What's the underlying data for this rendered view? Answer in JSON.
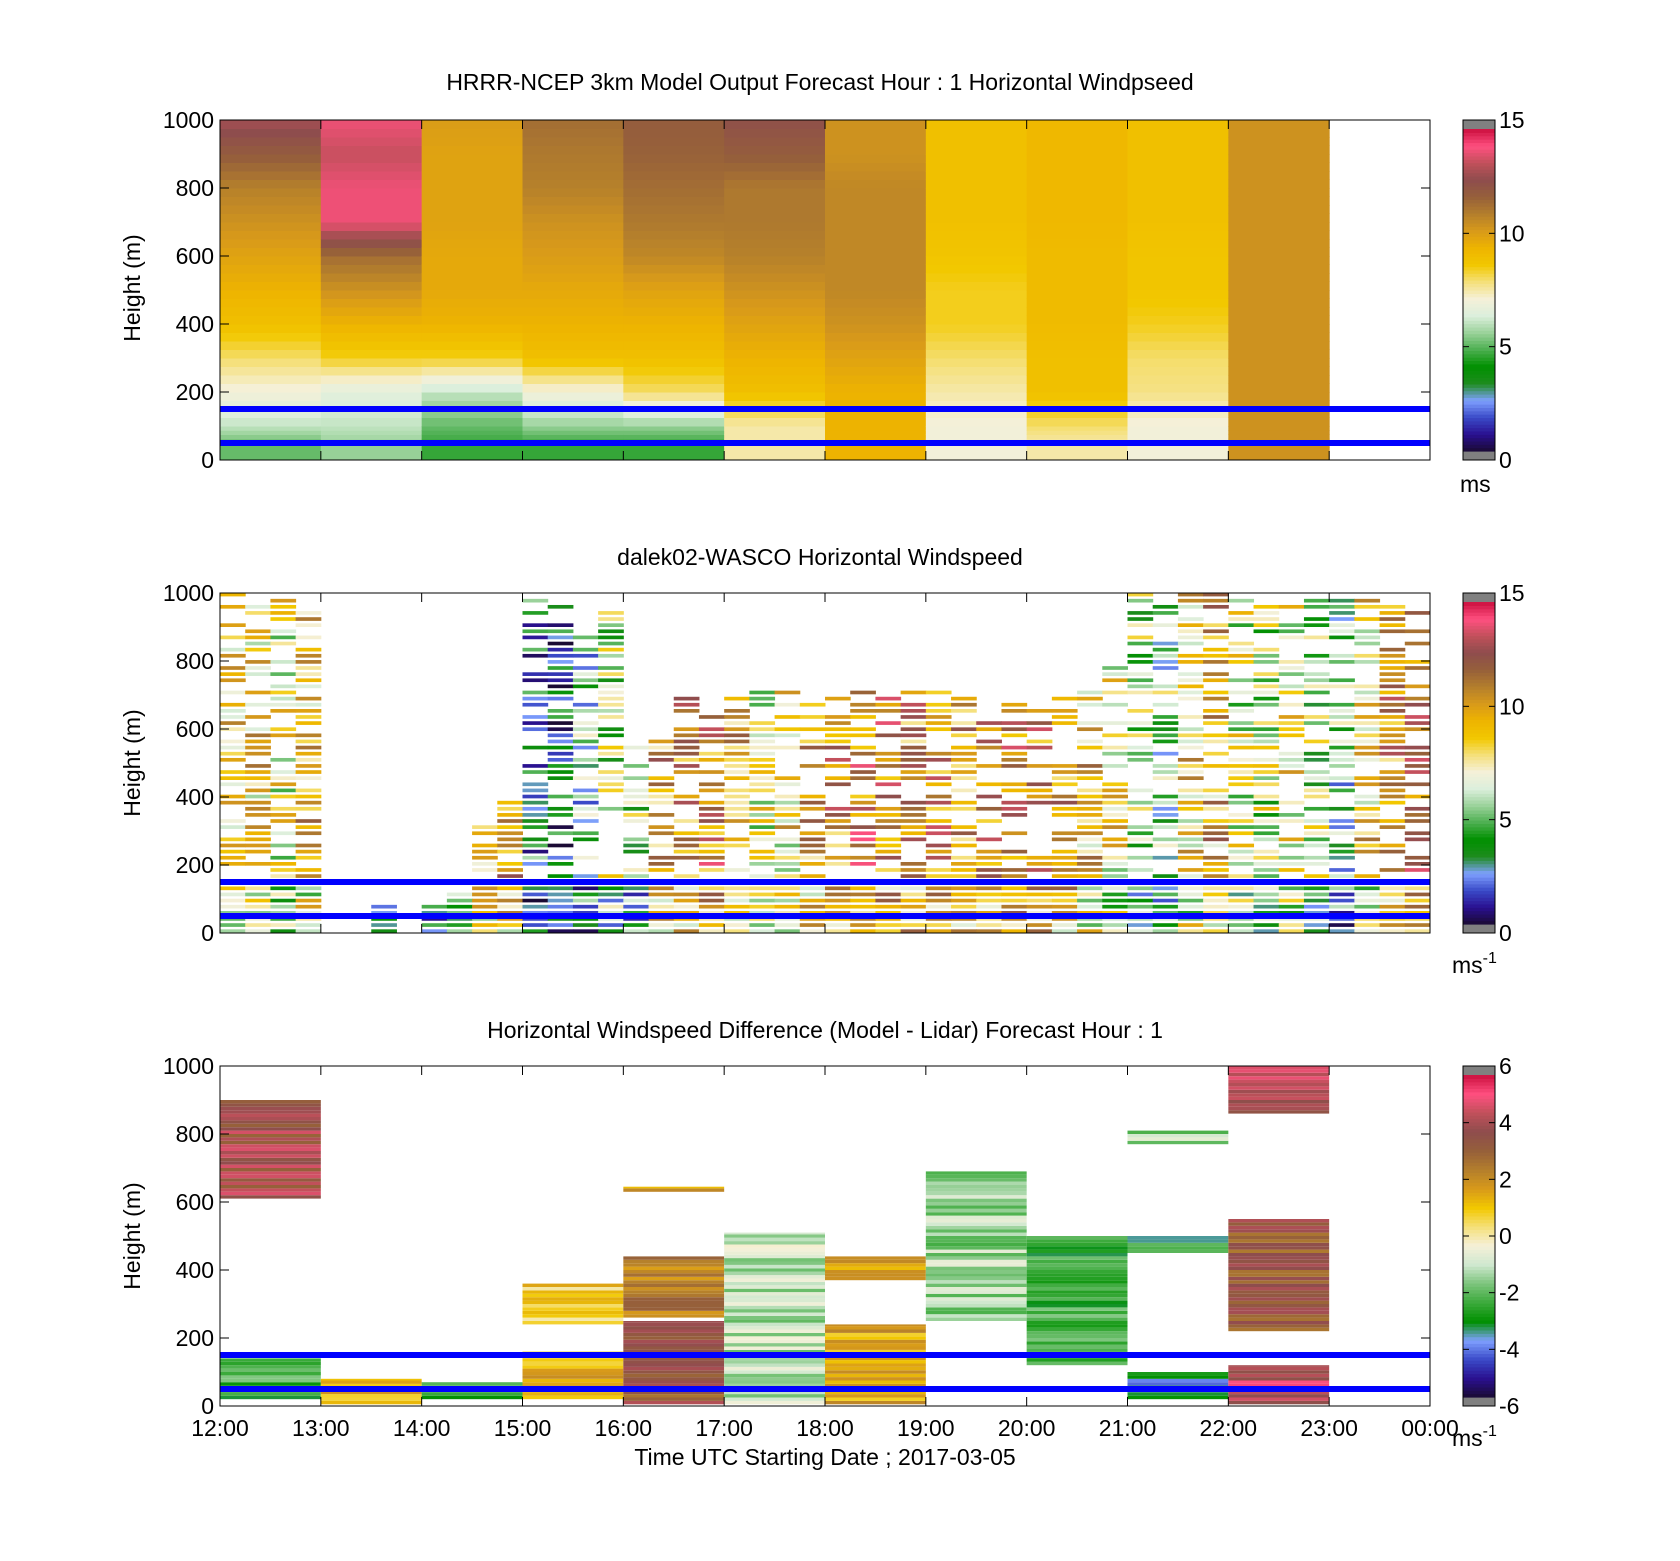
{
  "colors": {
    "axis": "#000000",
    "reference_lines": "#0000ff",
    "windspeed_colormap": [
      "#1a0a33",
      "#2a1090",
      "#3a4ac8",
      "#7fa0ff",
      "#1e8c1e",
      "#009000",
      "#4caf50",
      "#9ad29a",
      "#dcefdc",
      "#f5f0d8",
      "#f5e07a",
      "#f2c800",
      "#eeb400",
      "#d89a1a",
      "#b47f2c",
      "#96603a",
      "#8e4d4d",
      "#c0505a",
      "#ff5080",
      "#cc1040"
    ],
    "difference_colormap": [
      "#1a0a33",
      "#2a1090",
      "#3a4ac8",
      "#7fa0ff",
      "#009000",
      "#3caa3c",
      "#7cc47c",
      "#cfe8cf",
      "#f5f0d8",
      "#f5e07a",
      "#f2c800",
      "#d89a1a",
      "#b47f2c",
      "#96603a",
      "#8e4d4d",
      "#c0505a",
      "#ff5080",
      "#cc1040"
    ]
  },
  "shared": {
    "x_tick_labels": [
      "12:00",
      "13:00",
      "14:00",
      "15:00",
      "16:00",
      "17:00",
      "18:00",
      "19:00",
      "20:00",
      "21:00",
      "22:00",
      "23:00",
      "00:00"
    ],
    "xlabel": "Time UTC  Starting Date ; 2017-03-05",
    "y_tick_labels": [
      "0",
      "200",
      "400",
      "600",
      "800",
      "1000"
    ],
    "ylabel": "Height (m)",
    "reference_line_heights_m": [
      150,
      50
    ]
  },
  "chart_data": [
    {
      "type": "heatmap",
      "title": "HRRR-NCEP 3km Model Output   Forecast Hour : 1 Horizontal Windpseed",
      "xlabel": "",
      "ylabel": "Height (m)",
      "xlim_hours_utc": [
        12,
        24
      ],
      "ylim": [
        0,
        1000
      ],
      "colorbar": {
        "range": [
          0,
          15
        ],
        "tick_labels": [
          "0",
          "5",
          "10",
          "15"
        ],
        "unit": "ms"
      },
      "x_bins_hours_utc": [
        12,
        13,
        14,
        15,
        16,
        17,
        18,
        19,
        20,
        21,
        22
      ],
      "y_bins_m": [
        50,
        100,
        200,
        300,
        400,
        500,
        600,
        700,
        800,
        900,
        1000
      ],
      "values_ms": [
        [
          5.0,
          5.5,
          4.5,
          4.5,
          4.5,
          7.5,
          9.5,
          7.0,
          7.5,
          7.0,
          10.5
        ],
        [
          6.0,
          6.0,
          5.0,
          5.5,
          5.5,
          7.5,
          9.5,
          7.0,
          8.0,
          7.0,
          10.5
        ],
        [
          7.0,
          6.5,
          6.0,
          7.0,
          8.0,
          9.0,
          9.5,
          7.5,
          9.0,
          7.8,
          10.5
        ],
        [
          8.0,
          8.5,
          8.5,
          9.0,
          9.0,
          9.5,
          10.0,
          8.0,
          9.0,
          8.0,
          10.5
        ],
        [
          9.0,
          9.5,
          9.5,
          9.5,
          9.5,
          10.0,
          10.5,
          8.5,
          9.2,
          8.5,
          10.5
        ],
        [
          9.5,
          10.5,
          9.8,
          9.8,
          10.0,
          10.5,
          10.8,
          8.5,
          9.2,
          8.8,
          10.5
        ],
        [
          10.0,
          11.5,
          9.8,
          10.2,
          10.8,
          11.0,
          10.8,
          8.8,
          9.2,
          8.8,
          10.5
        ],
        [
          10.5,
          14.0,
          10.0,
          10.5,
          11.2,
          11.2,
          10.8,
          9.0,
          9.3,
          9.0,
          10.5
        ],
        [
          11.0,
          14.0,
          10.0,
          11.0,
          11.5,
          11.2,
          10.8,
          9.0,
          9.3,
          9.0,
          10.5
        ],
        [
          12.0,
          13.5,
          10.0,
          11.2,
          11.8,
          12.0,
          10.5,
          9.0,
          9.3,
          9.0,
          10.5
        ],
        [
          13.0,
          14.0,
          10.2,
          11.5,
          12.0,
          12.5,
          10.5,
          9.0,
          9.3,
          9.0,
          10.5
        ]
      ]
    },
    {
      "type": "heatmap",
      "title": "dalek02-WASCO  Horizontal Windspeed",
      "xlabel": "",
      "ylabel": "Height (m)",
      "xlim_hours_utc": [
        12,
        24
      ],
      "ylim": [
        0,
        1000
      ],
      "colorbar": {
        "range": [
          0,
          15
        ],
        "tick_labels": [
          "0",
          "5",
          "10",
          "15"
        ],
        "unit": "ms",
        "unit_superscript": "-1"
      },
      "columns_start_hour_utc": [
        12.0,
        12.25,
        12.5,
        12.75,
        13.5,
        14.0,
        14.25,
        14.5,
        14.75,
        15.0,
        15.25,
        15.5,
        15.75,
        16.0,
        16.25,
        16.5,
        16.75,
        17.0,
        17.25,
        17.5,
        17.75,
        18.0,
        18.25,
        18.5,
        18.75,
        19.0,
        19.25,
        19.5,
        19.75,
        20.0,
        20.25,
        20.5,
        20.75,
        21.0,
        21.25,
        21.5,
        21.75,
        22.0,
        22.25,
        22.5,
        22.75,
        23.0,
        23.25,
        23.5,
        23.75
      ],
      "columns_top_height_m": [
        1000,
        1000,
        990,
        940,
        80,
        90,
        110,
        320,
        380,
        990,
        980,
        970,
        960,
        590,
        580,
        720,
        640,
        700,
        720,
        720,
        700,
        690,
        710,
        720,
        720,
        720,
        720,
        700,
        690,
        680,
        710,
        720,
        780,
        1000,
        1000,
        1000,
        1000,
        1000,
        1000,
        990,
        990,
        1000,
        980,
        960,
        940
      ],
      "column_median_windspeed_ms": [
        9.0,
        8.5,
        7.5,
        9.0,
        4.5,
        4.5,
        5.0,
        9.5,
        10.0,
        3.0,
        2.0,
        4.5,
        6.0,
        5.5,
        10.0,
        10.5,
        11.0,
        9.5,
        7.5,
        8.0,
        10.0,
        10.5,
        11.5,
        11.0,
        10.5,
        11.0,
        10.0,
        10.5,
        11.0,
        11.0,
        10.5,
        9.0,
        8.0,
        6.0,
        5.0,
        8.5,
        9.5,
        7.0,
        6.5,
        7.5,
        6.0,
        4.5,
        8.5,
        10.5,
        11.0
      ]
    },
    {
      "type": "heatmap",
      "title": "Horizontal Windspeed Difference (Model - Lidar) Forecast Hour : 1",
      "xlabel": "Time UTC  Starting Date ; 2017-03-05",
      "ylabel": "Height (m)",
      "xlim_hours_utc": [
        12,
        24
      ],
      "ylim": [
        0,
        1000
      ],
      "colorbar": {
        "range": [
          -6,
          6
        ],
        "tick_labels": [
          "-6",
          "-4",
          "-2",
          "0",
          "2",
          "4",
          "6"
        ],
        "unit": "ms",
        "unit_superscript": "-1"
      },
      "x_tick_labels": [
        "12:00",
        "13:00",
        "14:00",
        "15:00",
        "16:00",
        "17:00",
        "18:00",
        "19:00",
        "20:00",
        "21:00",
        "22:00",
        "23:00",
        "00:00"
      ],
      "difference_bands": [
        {
          "start_hour_utc": 12,
          "end_hour_utc": 13,
          "bottom_m": 610,
          "top_m": 900,
          "value_ms": 4.0
        },
        {
          "start_hour_utc": 12,
          "end_hour_utc": 13,
          "bottom_m": 20,
          "top_m": 140,
          "value_ms": -2.5
        },
        {
          "start_hour_utc": 13,
          "end_hour_utc": 14,
          "bottom_m": 5,
          "top_m": 80,
          "value_ms": 1.5
        },
        {
          "start_hour_utc": 14,
          "end_hour_utc": 15,
          "bottom_m": 20,
          "top_m": 70,
          "value_ms": -2.5
        },
        {
          "start_hour_utc": 15,
          "end_hour_utc": 16,
          "bottom_m": 240,
          "top_m": 360,
          "value_ms": 0.8
        },
        {
          "start_hour_utc": 15,
          "end_hour_utc": 16,
          "bottom_m": 20,
          "top_m": 160,
          "value_ms": 1.5
        },
        {
          "start_hour_utc": 16,
          "end_hour_utc": 17,
          "bottom_m": 5,
          "top_m": 250,
          "value_ms": 3.5
        },
        {
          "start_hour_utc": 16,
          "end_hour_utc": 17,
          "bottom_m": 260,
          "top_m": 440,
          "value_ms": 2.5
        },
        {
          "start_hour_utc": 16,
          "end_hour_utc": 17,
          "bottom_m": 630,
          "top_m": 645,
          "value_ms": 1.5
        },
        {
          "start_hour_utc": 17,
          "end_hour_utc": 18,
          "bottom_m": 5,
          "top_m": 510,
          "value_ms": -1.2
        },
        {
          "start_hour_utc": 18,
          "end_hour_utc": 19,
          "bottom_m": 5,
          "top_m": 240,
          "value_ms": 1.5
        },
        {
          "start_hour_utc": 18,
          "end_hour_utc": 19,
          "bottom_m": 370,
          "top_m": 440,
          "value_ms": 2.0
        },
        {
          "start_hour_utc": 19,
          "end_hour_utc": 20,
          "bottom_m": 250,
          "top_m": 690,
          "value_ms": -1.5
        },
        {
          "start_hour_utc": 20,
          "end_hour_utc": 21,
          "bottom_m": 120,
          "top_m": 500,
          "value_ms": -2.5
        },
        {
          "start_hour_utc": 21,
          "end_hour_utc": 22,
          "bottom_m": 450,
          "top_m": 500,
          "value_ms": -3.0
        },
        {
          "start_hour_utc": 21,
          "end_hour_utc": 22,
          "bottom_m": 770,
          "top_m": 810,
          "value_ms": -1.5
        },
        {
          "start_hour_utc": 21,
          "end_hour_utc": 22,
          "bottom_m": 20,
          "top_m": 100,
          "value_ms": -3.5
        },
        {
          "start_hour_utc": 22,
          "end_hour_utc": 23,
          "bottom_m": 5,
          "top_m": 120,
          "value_ms": 4.5
        },
        {
          "start_hour_utc": 22,
          "end_hour_utc": 23,
          "bottom_m": 220,
          "top_m": 550,
          "value_ms": 3.5
        },
        {
          "start_hour_utc": 22,
          "end_hour_utc": 23,
          "bottom_m": 860,
          "top_m": 1000,
          "value_ms": 4.5
        }
      ]
    }
  ]
}
